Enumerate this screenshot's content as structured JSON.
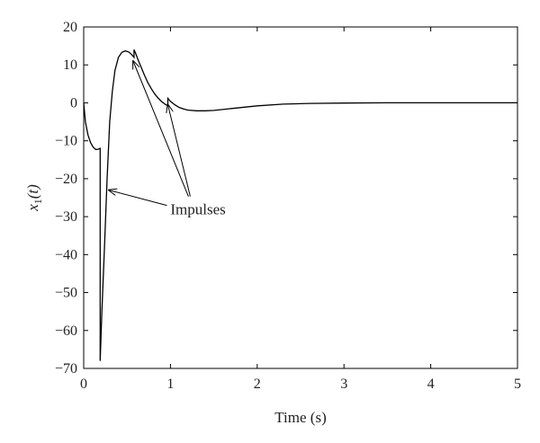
{
  "chart_data": {
    "type": "line",
    "title": "",
    "xlabel": "Time (s)",
    "ylabel_main": "x",
    "ylabel_sub": "1",
    "ylabel_arg": "(t)",
    "xlim": [
      0,
      5
    ],
    "ylim": [
      -70,
      20
    ],
    "xticks": [
      0,
      1,
      2,
      3,
      4,
      5
    ],
    "yticks": [
      -70,
      -60,
      -50,
      -40,
      -30,
      -20,
      -10,
      0,
      10,
      20
    ],
    "grid": false,
    "legend": "none",
    "line_color": "#000000",
    "series": [
      {
        "x": [
          0,
          0.02,
          0.05,
          0.08,
          0.11,
          0.14,
          0.17,
          0.19,
          0.19,
          0.21,
          0.24,
          0.27,
          0.3,
          0.33,
          0.36,
          0.4,
          0.44,
          0.48,
          0.52,
          0.55,
          0.58,
          0.58,
          0.6,
          0.63,
          0.66,
          0.7,
          0.74,
          0.78,
          0.82,
          0.86,
          0.9,
          0.94,
          0.97,
          0.97,
          1.0,
          1.05,
          1.1,
          1.15,
          1.2,
          1.3,
          1.4,
          1.5,
          1.7,
          2.0,
          2.3,
          2.6,
          3.0,
          3.5,
          4.0,
          4.5,
          5.0
        ],
        "y": [
          0,
          -5,
          -8.5,
          -10.5,
          -11.7,
          -12.3,
          -12.2,
          -12,
          -68,
          -55,
          -38,
          -20,
          -5,
          3,
          8.5,
          12,
          13.3,
          13.7,
          13.4,
          12.8,
          12,
          14,
          13,
          11.2,
          9.5,
          7.3,
          5.3,
          3.7,
          2.3,
          1.2,
          0.3,
          -0.4,
          -0.8,
          1.2,
          0.4,
          -0.5,
          -1.2,
          -1.6,
          -1.9,
          -2.1,
          -2.1,
          -2.0,
          -1.5,
          -0.8,
          -0.35,
          -0.15,
          -0.05,
          0,
          0,
          0,
          0
        ]
      }
    ],
    "annotations": [
      {
        "text": "Impulses",
        "text_pos": [
          1.0,
          -28
        ],
        "arrow_targets": [
          [
            0.29,
            -23
          ],
          [
            0.57,
            11
          ],
          [
            0.97,
            -0.5
          ]
        ]
      }
    ]
  }
}
